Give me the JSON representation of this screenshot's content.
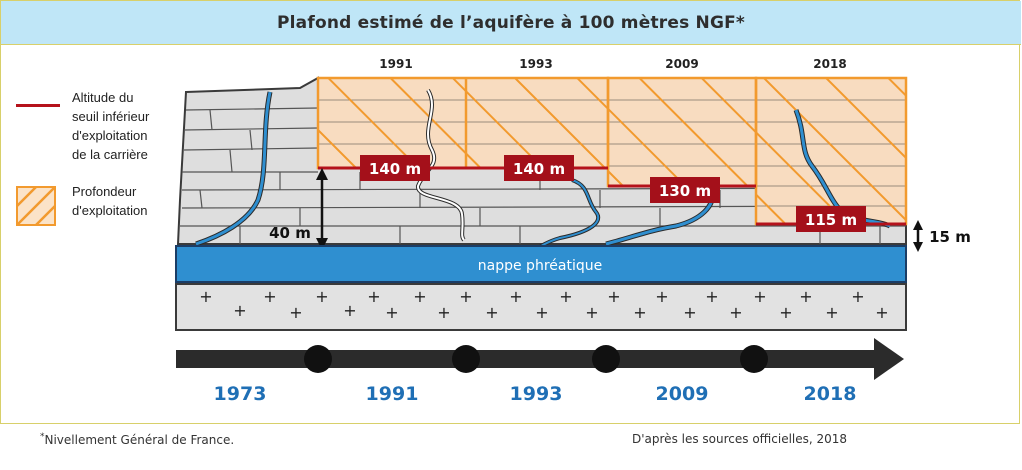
{
  "title": "Plafond estimé de l’aquifère à 100 mètres NGF*",
  "legend": {
    "threshold_label": "Altitude du seuil inférieur d'exploitation de la carrière",
    "threshold_lines": [
      "Altitude du",
      "seuil inférieur",
      "d'exploitation",
      "de la carrière"
    ],
    "depth_label": "Profondeur d'exploitation",
    "depth_lines": [
      "Profondeur",
      "d'exploitation"
    ]
  },
  "colors": {
    "threshold_line": "#b5121b",
    "hatch": "#f29a2e",
    "water": "#2f8fd0",
    "rock": "#dcdcdc",
    "timeline": "#2b2b2b",
    "year_text": "#1f6fb5"
  },
  "quarry_blocks": [
    {
      "year": "1991",
      "seuil_label": "140 m"
    },
    {
      "year": "1993",
      "seuil_label": "140 m"
    },
    {
      "year": "2009",
      "seuil_label": "130 m"
    },
    {
      "year": "2018",
      "seuil_label": "115 m"
    }
  ],
  "dimensions": {
    "gap_label": "40 m",
    "right_label": "15 m"
  },
  "aquifer_label": "nappe phréatique",
  "timeline": {
    "years": [
      "1973",
      "1991",
      "1993",
      "2009",
      "2018"
    ]
  },
  "footnotes": {
    "left_star": "*",
    "left": "Nivellement Général de France.",
    "right": "D'après les sources officielles, 2018"
  }
}
